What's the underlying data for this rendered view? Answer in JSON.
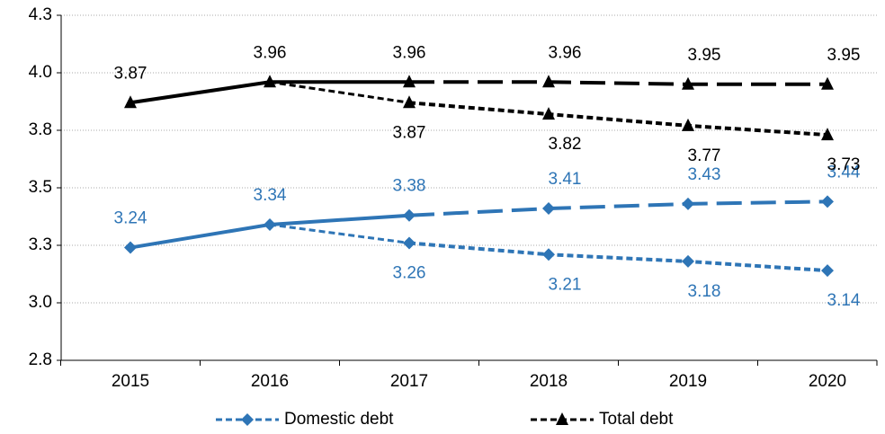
{
  "chart_data": {
    "type": "line",
    "categories": [
      "2015",
      "2016",
      "2017",
      "2018",
      "2019",
      "2020"
    ],
    "series": [
      {
        "name": "Domestic debt",
        "color": "#2e75b6",
        "marker": "diamond",
        "values": [
          3.24,
          3.34,
          3.38,
          3.41,
          3.43,
          3.44
        ]
      },
      {
        "name": "Total debt",
        "color": "#000000",
        "marker": "triangle",
        "values": [
          3.87,
          3.96,
          3.96,
          3.96,
          3.95,
          3.95
        ]
      },
      {
        "color": "#2e75b6",
        "marker": "diamond",
        "style": "dashed",
        "values": [
          null,
          null,
          3.26,
          3.21,
          3.18,
          3.14
        ]
      },
      {
        "color": "#000000",
        "marker": "triangle",
        "style": "dashed",
        "values": [
          null,
          null,
          3.87,
          3.82,
          3.77,
          3.73
        ]
      }
    ],
    "ylim": [
      2.75,
      4.25
    ],
    "yticks": [
      {
        "value": 2.75,
        "label": "2.8"
      },
      {
        "value": 3.0,
        "label": "3.0"
      },
      {
        "value": 3.25,
        "label": "3.3"
      },
      {
        "value": 3.5,
        "label": "3.5"
      },
      {
        "value": 3.75,
        "label": "3.8"
      },
      {
        "value": 4.0,
        "label": "4.0"
      },
      {
        "value": 4.25,
        "label": "4.3"
      }
    ],
    "grid": true,
    "legend": "bottom"
  }
}
